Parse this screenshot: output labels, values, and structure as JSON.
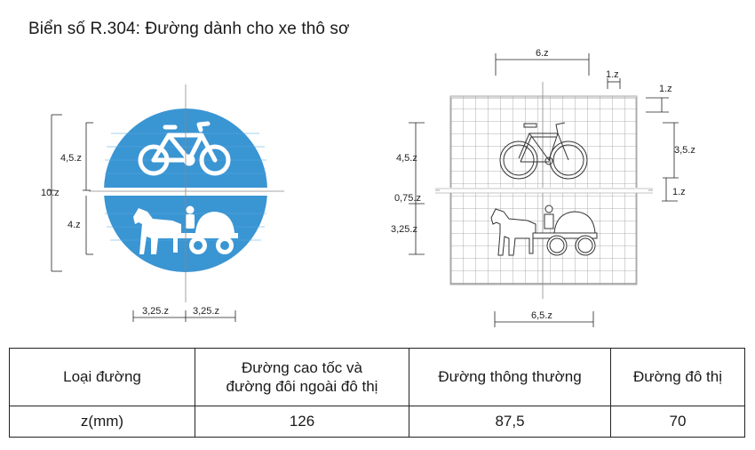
{
  "title": "Biển số R.304: Đường dành cho xe thô sơ",
  "left_sign_dims": {
    "height_total": "10.z",
    "upper": "4,5.z",
    "lower": "4.z",
    "half_left": "3,25.z",
    "half_right": "3,25.z"
  },
  "right_grid_dims": {
    "top_width": "6.z",
    "cell_top": "1.z",
    "right_top": "1.z",
    "right_height": "3,5.z",
    "right_bottom": "1.z",
    "left_upper": "4,5.z",
    "left_gap": "0,75.z",
    "left_lower": "3,25.z",
    "bottom_width": "6,5.z"
  },
  "table": {
    "headers": [
      "Loại đường",
      [
        "Đường cao tốc và",
        "đường đôi ngoài đô thị"
      ],
      "Đường thông thường",
      "Đường đô thị"
    ],
    "row_label": "z(mm)",
    "values": [
      "126",
      "87,5",
      "70"
    ]
  },
  "colors": {
    "sign_blue": "#3a95d3",
    "sign_blue_light": "#5aaade",
    "grid": "#9a9a9a"
  }
}
